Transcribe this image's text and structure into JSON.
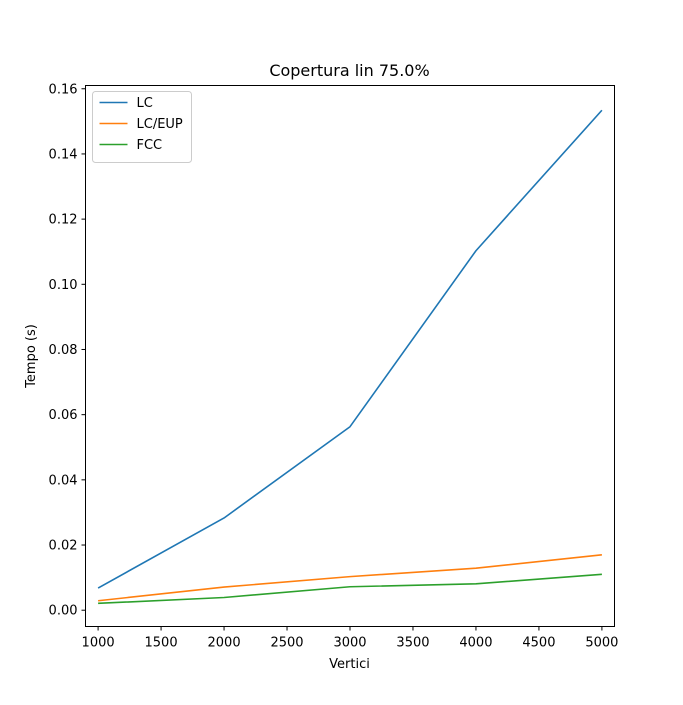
{
  "chart_data": {
    "type": "line",
    "title": "Copertura lin 75.0%",
    "xlabel": "Vertici",
    "ylabel": "Tempo (s)",
    "x": [
      1000,
      2000,
      3000,
      4000,
      5000
    ],
    "xlim": [
      900,
      5100
    ],
    "ylim": [
      -0.005,
      0.161
    ],
    "xticks": [
      1000,
      1500,
      2000,
      2500,
      3000,
      3500,
      4000,
      4500,
      5000
    ],
    "yticks": [
      0.0,
      0.02,
      0.04,
      0.06,
      0.08,
      0.1,
      0.12,
      0.14,
      0.16
    ],
    "grid": false,
    "legend_position": "top-left",
    "series": [
      {
        "name": "LC",
        "color": "#1f77b4",
        "values": [
          0.0068,
          0.0283,
          0.0563,
          0.1103,
          0.1534
        ]
      },
      {
        "name": "LC/EUP",
        "color": "#ff7f0e",
        "values": [
          0.0029,
          0.0071,
          0.0103,
          0.0129,
          0.017
        ]
      },
      {
        "name": "FCC",
        "color": "#2ca02c",
        "values": [
          0.0021,
          0.0039,
          0.0072,
          0.0081,
          0.011
        ]
      }
    ]
  }
}
